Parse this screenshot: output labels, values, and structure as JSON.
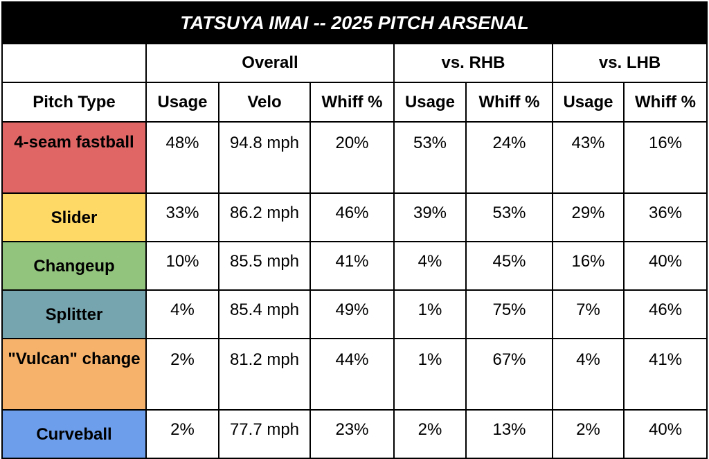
{
  "title": "TATSUYA IMAI -- 2025 PITCH ARSENAL",
  "groups": [
    "Overall",
    "vs. RHB",
    "vs. LHB"
  ],
  "columns": [
    "Pitch Type",
    "Usage",
    "Velo",
    "Whiff %",
    "Usage",
    "Whiff %",
    "Usage",
    "Whiff %"
  ],
  "rows": [
    {
      "pitch": "4-seam fastball",
      "color": "#e06666",
      "cells": [
        "48%",
        "94.8 mph",
        "20%",
        "53%",
        "24%",
        "43%",
        "16%"
      ]
    },
    {
      "pitch": "Slider",
      "color": "#ffd966",
      "cells": [
        "33%",
        "86.2 mph",
        "46%",
        "39%",
        "53%",
        "29%",
        "36%"
      ]
    },
    {
      "pitch": "Changeup",
      "color": "#93c47d",
      "cells": [
        "10%",
        "85.5 mph",
        "41%",
        "4%",
        "45%",
        "16%",
        "40%"
      ]
    },
    {
      "pitch": "Splitter",
      "color": "#76a5af",
      "cells": [
        "4%",
        "85.4 mph",
        "49%",
        "1%",
        "75%",
        "7%",
        "46%"
      ]
    },
    {
      "pitch": "\"Vulcan\" change",
      "color": "#f6b26b",
      "cells": [
        "2%",
        "81.2 mph",
        "44%",
        "1%",
        "67%",
        "4%",
        "41%"
      ]
    },
    {
      "pitch": "Curveball",
      "color": "#6d9eeb",
      "cells": [
        "2%",
        "77.7 mph",
        "23%",
        "2%",
        "13%",
        "2%",
        "40%"
      ]
    }
  ],
  "chart_data": {
    "type": "table",
    "title": "TATSUYA IMAI -- 2025 PITCH ARSENAL"
  }
}
